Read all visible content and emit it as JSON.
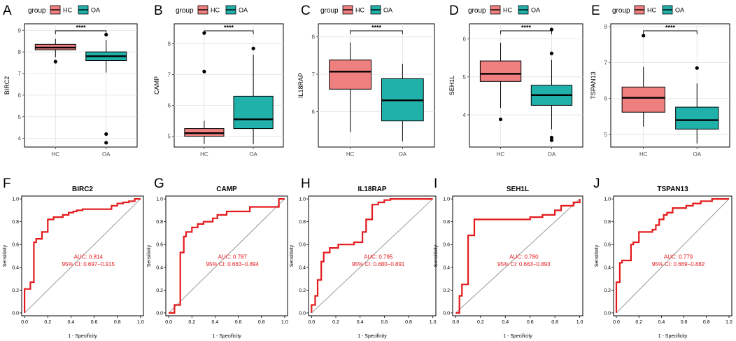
{
  "colors": {
    "hc_fill": "#F08080",
    "oa_fill": "#20B2AA",
    "roc_line": "#E41A1C",
    "diag_line": "#999999",
    "panel_bg": "#EBEBEB",
    "grid": "#FFFFFF"
  },
  "legend": {
    "title": "group",
    "items": [
      "HC",
      "OA"
    ]
  },
  "significance": "****",
  "chart_data": [
    {
      "type": "boxplot",
      "panel": "A",
      "ylabel": "BIRC2",
      "categories": [
        "HC",
        "OA"
      ],
      "yticks": [
        4,
        5,
        6,
        7,
        8,
        9
      ],
      "ylim": [
        3.6,
        9.3
      ],
      "boxes": [
        {
          "group": "HC",
          "q1": 8.1,
          "median": 8.2,
          "q3": 8.35,
          "whisker_low": 7.75,
          "whisker_high": 8.6,
          "outliers": [
            7.55
          ]
        },
        {
          "group": "OA",
          "q1": 7.6,
          "median": 7.8,
          "q3": 8.0,
          "whisker_low": 7.05,
          "whisker_high": 8.55,
          "outliers": [
            8.8,
            4.2,
            3.8
          ]
        }
      ]
    },
    {
      "type": "boxplot",
      "panel": "B",
      "ylabel": "CAMP",
      "categories": [
        "HC",
        "OA"
      ],
      "yticks": [
        5,
        6,
        7,
        8
      ],
      "ylim": [
        4.65,
        8.65
      ],
      "boxes": [
        {
          "group": "HC",
          "q1": 5.0,
          "median": 5.1,
          "q3": 5.25,
          "whisker_low": 4.75,
          "whisker_high": 5.5,
          "outliers": [
            8.35,
            7.1
          ]
        },
        {
          "group": "OA",
          "q1": 5.25,
          "median": 5.55,
          "q3": 6.3,
          "whisker_low": 4.75,
          "whisker_high": 7.65,
          "outliers": [
            7.85
          ]
        }
      ]
    },
    {
      "type": "boxplot",
      "panel": "C",
      "ylabel": "IL18RAP",
      "categories": [
        "HC",
        "OA"
      ],
      "yticks": [
        6,
        7,
        8
      ],
      "ylim": [
        5.05,
        8.35
      ],
      "boxes": [
        {
          "group": "HC",
          "q1": 6.6,
          "median": 7.07,
          "q3": 7.38,
          "whisker_low": 5.45,
          "whisker_high": 7.85,
          "outliers": []
        },
        {
          "group": "OA",
          "q1": 5.75,
          "median": 6.3,
          "q3": 6.88,
          "whisker_low": 5.2,
          "whisker_high": 7.28,
          "outliers": []
        }
      ]
    },
    {
      "type": "boxplot",
      "panel": "D",
      "ylabel": "SEH1L",
      "categories": [
        "HC",
        "OA"
      ],
      "yticks": [
        4,
        5,
        6
      ],
      "ylim": [
        3.15,
        6.4
      ],
      "boxes": [
        {
          "group": "HC",
          "q1": 4.88,
          "median": 5.08,
          "q3": 5.42,
          "whisker_low": 4.18,
          "whisker_high": 5.9,
          "outliers": [
            3.88
          ]
        },
        {
          "group": "OA",
          "q1": 4.25,
          "median": 4.52,
          "q3": 4.78,
          "whisker_low": 3.62,
          "whisker_high": 5.45,
          "outliers": [
            6.25,
            5.62,
            3.4,
            3.33
          ]
        }
      ]
    },
    {
      "type": "boxplot",
      "panel": "E",
      "ylabel": "TSPAN13",
      "categories": [
        "HC",
        "OA"
      ],
      "yticks": [
        5,
        6,
        7,
        8
      ],
      "ylim": [
        4.65,
        8.08
      ],
      "boxes": [
        {
          "group": "HC",
          "q1": 5.62,
          "median": 6.02,
          "q3": 6.32,
          "whisker_low": 5.22,
          "whisker_high": 6.88,
          "outliers": [
            7.75
          ]
        },
        {
          "group": "OA",
          "q1": 5.15,
          "median": 5.4,
          "q3": 5.76,
          "whisker_low": 4.75,
          "whisker_high": 6.42,
          "outliers": [
            6.85
          ]
        }
      ]
    },
    {
      "type": "line",
      "panel": "F",
      "title": "BIRC2",
      "xlabel": "1 - Specificity",
      "ylabel": "Sensitivity",
      "xticks": [
        "0.0",
        "0.2",
        "0.4",
        "0.6",
        "0.8",
        "1.0"
      ],
      "yticks": [
        "0.0",
        "0.2",
        "0.4",
        "0.6",
        "0.8",
        "1.0"
      ],
      "auc": "AUC: 0.814",
      "ci": "95% CI: 0.697−0.915",
      "x": [
        0,
        0,
        0.05,
        0.05,
        0.08,
        0.08,
        0.1,
        0.1,
        0.15,
        0.15,
        0.2,
        0.2,
        0.25,
        0.25,
        0.33,
        0.33,
        0.38,
        0.38,
        0.42,
        0.42,
        0.45,
        0.45,
        0.5,
        0.5,
        0.75,
        0.75,
        0.8,
        0.8,
        0.85,
        0.85,
        0.9,
        0.9,
        0.95,
        0.95,
        1.0
      ],
      "y": [
        0,
        0.21,
        0.21,
        0.27,
        0.27,
        0.62,
        0.62,
        0.65,
        0.65,
        0.71,
        0.71,
        0.82,
        0.82,
        0.84,
        0.84,
        0.86,
        0.86,
        0.88,
        0.88,
        0.89,
        0.89,
        0.9,
        0.9,
        0.91,
        0.91,
        0.94,
        0.94,
        0.96,
        0.96,
        0.97,
        0.97,
        0.98,
        0.98,
        1.0,
        1.0
      ]
    },
    {
      "type": "line",
      "panel": "G",
      "title": "CAMP",
      "xlabel": "1 - Specificity",
      "ylabel": "Sensitivity",
      "xticks": [
        "0.0",
        "0.2",
        "0.4",
        "0.6",
        "0.8",
        "1.0"
      ],
      "yticks": [
        "0.0",
        "0.2",
        "0.4",
        "0.6",
        "0.8",
        "1.0"
      ],
      "auc": "AUC: 0.787",
      "ci": "95% CI: 0.663−0.894",
      "x": [
        0,
        0.05,
        0.05,
        0.1,
        0.1,
        0.13,
        0.13,
        0.15,
        0.15,
        0.2,
        0.2,
        0.25,
        0.25,
        0.3,
        0.3,
        0.38,
        0.38,
        0.42,
        0.42,
        0.5,
        0.5,
        0.7,
        0.7,
        0.95,
        0.95,
        1.0,
        1.0
      ],
      "y": [
        0,
        0,
        0.07,
        0.07,
        0.53,
        0.53,
        0.67,
        0.67,
        0.71,
        0.71,
        0.75,
        0.75,
        0.78,
        0.78,
        0.8,
        0.8,
        0.83,
        0.83,
        0.86,
        0.86,
        0.89,
        0.89,
        0.93,
        0.93,
        1.0,
        1.0,
        1.0
      ]
    },
    {
      "type": "line",
      "panel": "H",
      "title": "IL18RAP",
      "xlabel": "1 - Specificity",
      "ylabel": "Sensitivity",
      "xticks": [
        "0.0",
        "0.2",
        "0.4",
        "0.6",
        "0.8",
        "1.0"
      ],
      "yticks": [
        "0.0",
        "0.2",
        "0.4",
        "0.6",
        "0.8",
        "1.0"
      ],
      "auc": "AUC: 0.795",
      "ci": "95% CI: 0.680−0.891",
      "x": [
        0,
        0,
        0.03,
        0.03,
        0.05,
        0.05,
        0.08,
        0.08,
        0.1,
        0.1,
        0.15,
        0.15,
        0.22,
        0.22,
        0.35,
        0.35,
        0.42,
        0.42,
        0.45,
        0.45,
        0.5,
        0.5,
        0.55,
        0.55,
        0.6,
        0.6,
        0.65,
        0.65,
        1.0
      ],
      "y": [
        0,
        0.07,
        0.07,
        0.15,
        0.15,
        0.29,
        0.29,
        0.45,
        0.45,
        0.53,
        0.53,
        0.57,
        0.57,
        0.6,
        0.6,
        0.62,
        0.62,
        0.71,
        0.71,
        0.82,
        0.82,
        0.95,
        0.95,
        0.97,
        0.97,
        0.99,
        0.99,
        1.0,
        1.0
      ]
    },
    {
      "type": "line",
      "panel": "I",
      "title": "SEH1L",
      "xlabel": "1 - Specificity",
      "ylabel": "Sensitivity",
      "xticks": [
        "0.0",
        "0.2",
        "0.4",
        "0.6",
        "0.8",
        "1.0"
      ],
      "yticks": [
        "0.0",
        "0.2",
        "0.4",
        "0.6",
        "0.8",
        "1.0"
      ],
      "auc": "AUC: 0.780",
      "ci": "95% CI: 0.663−0.893",
      "x": [
        0,
        0.03,
        0.03,
        0.05,
        0.05,
        0.1,
        0.1,
        0.15,
        0.15,
        0.6,
        0.6,
        0.7,
        0.7,
        0.8,
        0.8,
        0.85,
        0.85,
        0.95,
        0.95,
        1.0,
        1.0
      ],
      "y": [
        0,
        0,
        0.15,
        0.15,
        0.25,
        0.25,
        0.68,
        0.68,
        0.82,
        0.82,
        0.84,
        0.84,
        0.86,
        0.86,
        0.9,
        0.9,
        0.94,
        0.94,
        0.97,
        0.97,
        1.0
      ]
    },
    {
      "type": "line",
      "panel": "J",
      "title": "TSPAN13",
      "xlabel": "1 - Specificity",
      "ylabel": "Sensitivity",
      "xticks": [
        "0.0",
        "0.2",
        "0.4",
        "0.6",
        "0.8",
        "1.0"
      ],
      "yticks": [
        "0.0",
        "0.2",
        "0.4",
        "0.6",
        "0.8",
        "1.0"
      ],
      "auc": "AUC: 0.779",
      "ci": "95% CI: 0.669−0.882",
      "x": [
        0,
        0,
        0.03,
        0.03,
        0.05,
        0.05,
        0.13,
        0.13,
        0.15,
        0.15,
        0.2,
        0.2,
        0.32,
        0.32,
        0.35,
        0.35,
        0.38,
        0.38,
        0.42,
        0.42,
        0.45,
        0.45,
        0.5,
        0.5,
        0.62,
        0.62,
        0.68,
        0.68,
        0.75,
        0.75,
        0.85,
        0.85,
        1.0
      ],
      "y": [
        0,
        0.27,
        0.27,
        0.44,
        0.44,
        0.46,
        0.46,
        0.6,
        0.6,
        0.62,
        0.62,
        0.71,
        0.71,
        0.73,
        0.73,
        0.77,
        0.77,
        0.82,
        0.82,
        0.86,
        0.86,
        0.88,
        0.88,
        0.92,
        0.92,
        0.94,
        0.94,
        0.96,
        0.96,
        0.98,
        0.98,
        1.0,
        1.0
      ]
    }
  ]
}
